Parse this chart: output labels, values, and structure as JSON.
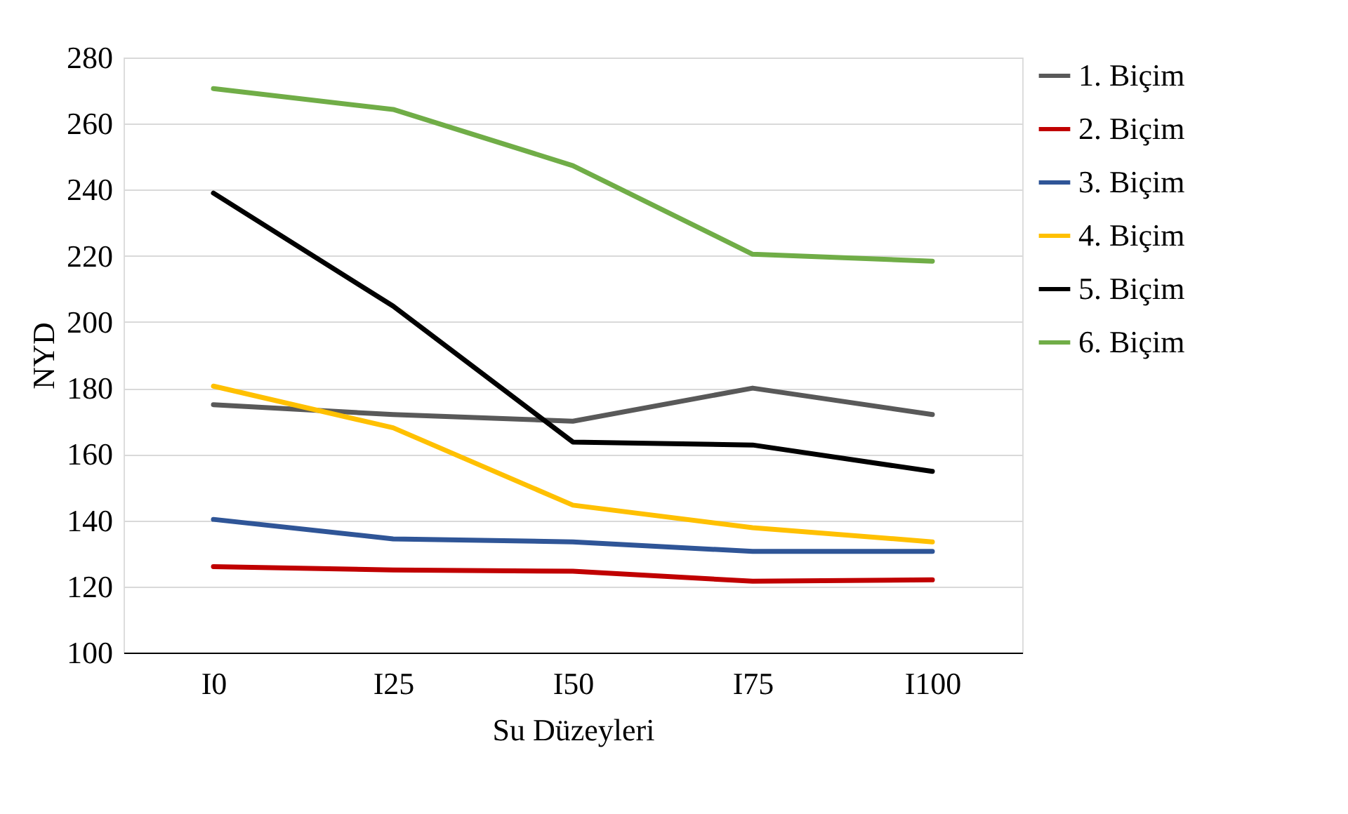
{
  "chart_data": {
    "type": "line",
    "xlabel": "Su Düzeyleri",
    "ylabel": "NYD",
    "categories": [
      "I0",
      "I25",
      "I50",
      "I75",
      "I100"
    ],
    "ylim": [
      100,
      280
    ],
    "yticks": [
      100,
      120,
      140,
      160,
      180,
      200,
      220,
      240,
      260,
      280
    ],
    "grid": "y",
    "legend": "right",
    "marker": "none",
    "line_style": "solid",
    "series": [
      {
        "name": "1. Biçim",
        "color": "#595959",
        "values": [
          175,
          172,
          170,
          180,
          172
        ]
      },
      {
        "name": "2. Biçim",
        "color": "#c00000",
        "values": [
          126,
          125,
          124.6,
          121.6,
          122
        ]
      },
      {
        "name": "3. Biçim",
        "color": "#2f5597",
        "values": [
          140.3,
          134.4,
          133.5,
          130.6,
          130.6
        ]
      },
      {
        "name": "4. Biçim",
        "color": "#ffc000",
        "values": [
          180.6,
          168,
          144.6,
          137.8,
          133.5
        ]
      },
      {
        "name": "5. Biçim",
        "color": "#000000",
        "values": [
          239,
          204.8,
          163.7,
          162.8,
          154.8
        ]
      },
      {
        "name": "6. Biçim",
        "color": "#70ad47",
        "values": [
          270.6,
          264.3,
          247.3,
          220.5,
          218.4
        ]
      }
    ]
  }
}
